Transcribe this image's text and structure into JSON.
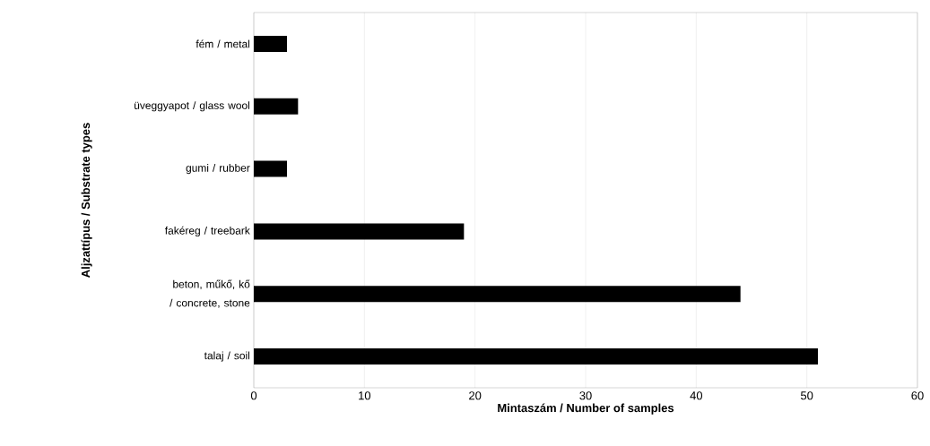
{
  "chart_data": {
    "type": "bar",
    "orientation": "horizontal",
    "xlabel": "Mintaszám / Number of samples",
    "ylabel": "Aljzattípus / Substrate types",
    "categories": [
      "fém / metal",
      "üveggyapot / glass wool",
      "gumi / rubber",
      "fakéreg / treebark",
      "beton, műkő, kő / concrete, stone",
      "talaj / soil"
    ],
    "values": [
      3,
      4,
      3,
      19,
      44,
      51
    ],
    "color": "#000000",
    "xlim": [
      0,
      60
    ],
    "xticks": [
      0,
      10,
      20,
      30,
      40,
      50,
      60
    ],
    "grid": "x"
  }
}
